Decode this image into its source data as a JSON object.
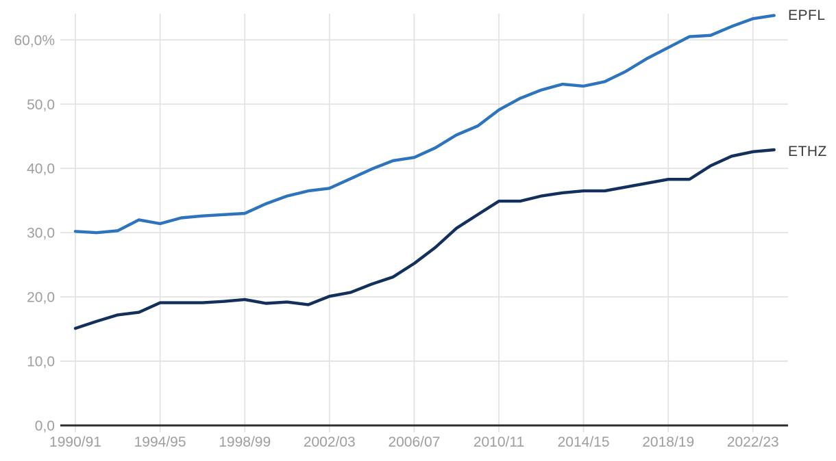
{
  "chart_data": {
    "type": "line",
    "title": "",
    "x_axis": {
      "categories": [
        "1990/91",
        "1991/92",
        "1992/93",
        "1993/94",
        "1994/95",
        "1995/96",
        "1996/97",
        "1997/98",
        "1998/99",
        "1999/00",
        "2000/01",
        "2001/02",
        "2002/03",
        "2003/04",
        "2004/05",
        "2005/06",
        "2006/07",
        "2007/08",
        "2008/09",
        "2009/10",
        "2010/11",
        "2011/12",
        "2012/13",
        "2013/14",
        "2014/15",
        "2015/16",
        "2016/17",
        "2017/18",
        "2018/19",
        "2019/20",
        "2020/21",
        "2021/22",
        "2022/23",
        "2023/24"
      ],
      "tick_labels": [
        "1990/91",
        "1994/95",
        "1998/99",
        "2002/03",
        "2006/07",
        "2010/11",
        "2014/15",
        "2018/19",
        "2022/23"
      ],
      "tick_every": 4
    },
    "y_axis": {
      "min": 0,
      "max": 60,
      "step": 10,
      "unit": "%",
      "tick_labels": [
        "0,0",
        "10,0",
        "20,0",
        "30,0",
        "40,0",
        "50,0",
        "60,0%"
      ],
      "ylim": [
        0,
        65
      ],
      "grid": true
    },
    "legend_position": "right-end-labels",
    "series": [
      {
        "name": "EPFL",
        "color": "#2d74bc",
        "values": [
          30.2,
          30.0,
          30.3,
          32.0,
          31.4,
          32.3,
          32.6,
          32.8,
          33.0,
          34.5,
          35.7,
          36.5,
          36.9,
          38.4,
          39.9,
          41.2,
          41.7,
          43.2,
          45.2,
          46.6,
          49.1,
          50.9,
          52.2,
          53.1,
          52.8,
          53.5,
          55.1,
          57.1,
          58.8,
          60.5,
          60.7,
          62.1,
          63.3,
          63.8
        ]
      },
      {
        "name": "ETHZ",
        "color": "#13305d",
        "values": [
          15.1,
          16.2,
          17.2,
          17.6,
          19.1,
          19.1,
          19.1,
          19.3,
          19.6,
          19.0,
          19.2,
          18.8,
          20.1,
          20.7,
          22.0,
          23.1,
          25.2,
          27.7,
          30.7,
          32.8,
          34.9,
          34.9,
          35.7,
          36.2,
          36.5,
          36.5,
          37.1,
          37.7,
          38.3,
          38.3,
          40.4,
          41.9,
          42.6,
          42.9
        ]
      }
    ]
  },
  "colors": {
    "background": "#ffffff",
    "grid": "#e3e3e3",
    "axis": "#2d2d2d",
    "tick_text": "#9e9e9e",
    "series_label_text": "#3b3b3b"
  }
}
